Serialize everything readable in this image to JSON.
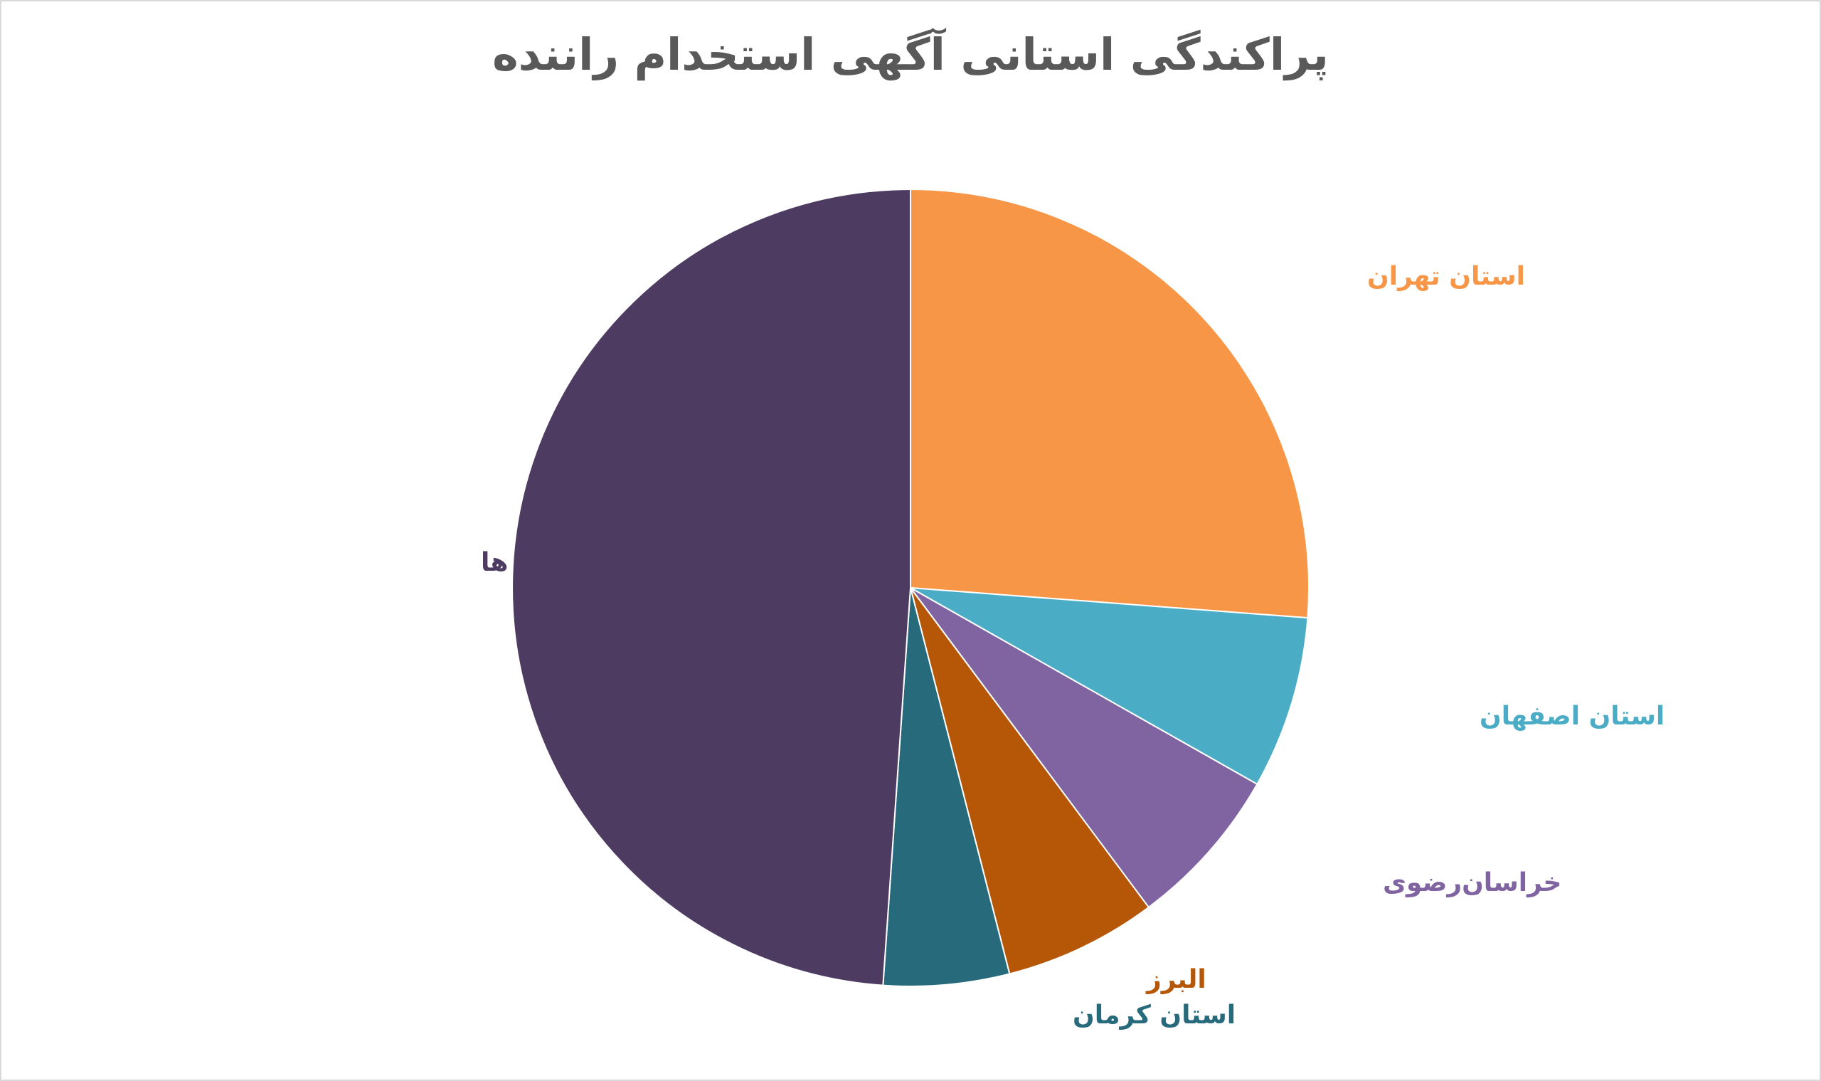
{
  "chart_data": {
    "type": "pie",
    "title": "پراکندگی استانی آگهی استخدام راننده",
    "slices": [
      {
        "label": "استان تهران",
        "value": 26.2,
        "color": "#F79646"
      },
      {
        "label": "استان اصفهان",
        "value": 7.0,
        "color": "#4BACC6"
      },
      {
        "label": "خراسان‌رضوی",
        "value": 6.6,
        "color": "#8064A2"
      },
      {
        "label": "البرز",
        "value": 6.2,
        "color": "#B65708"
      },
      {
        "label": "استان کرمان",
        "value": 5.1,
        "color": "#276A7C"
      },
      {
        "label": "سایر استان ها",
        "value": 48.9,
        "color": "#4E3B61"
      }
    ],
    "legend": "none",
    "data_labels": "category-name-outside"
  }
}
